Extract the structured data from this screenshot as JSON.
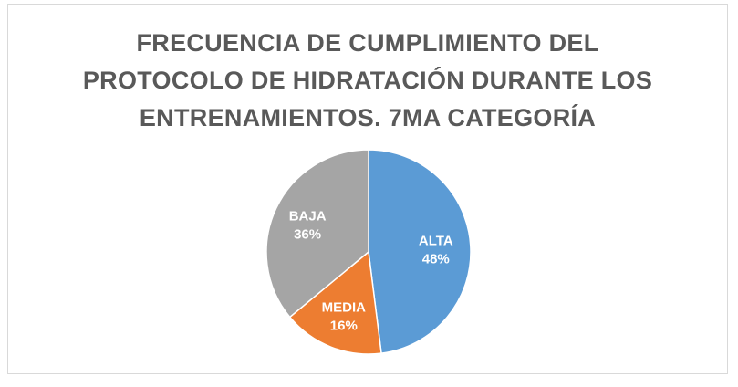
{
  "chart_data": {
    "type": "pie",
    "title_lines": [
      "FRECUENCIA  DE CUMPLIMIENTO DEL",
      "PROTOCOLO DE HIDRATACIÓN DURANTE LOS",
      "ENTRENAMIENTOS. 7MA CATEGORÍA"
    ],
    "categories": [
      "ALTA",
      "MEDIA",
      "BAJA"
    ],
    "values": [
      48,
      16,
      36
    ],
    "value_labels": [
      "48%",
      "16%",
      "36%"
    ],
    "colors": [
      "#5b9bd5",
      "#ed7d31",
      "#a5a5a5"
    ],
    "legend": "none"
  }
}
